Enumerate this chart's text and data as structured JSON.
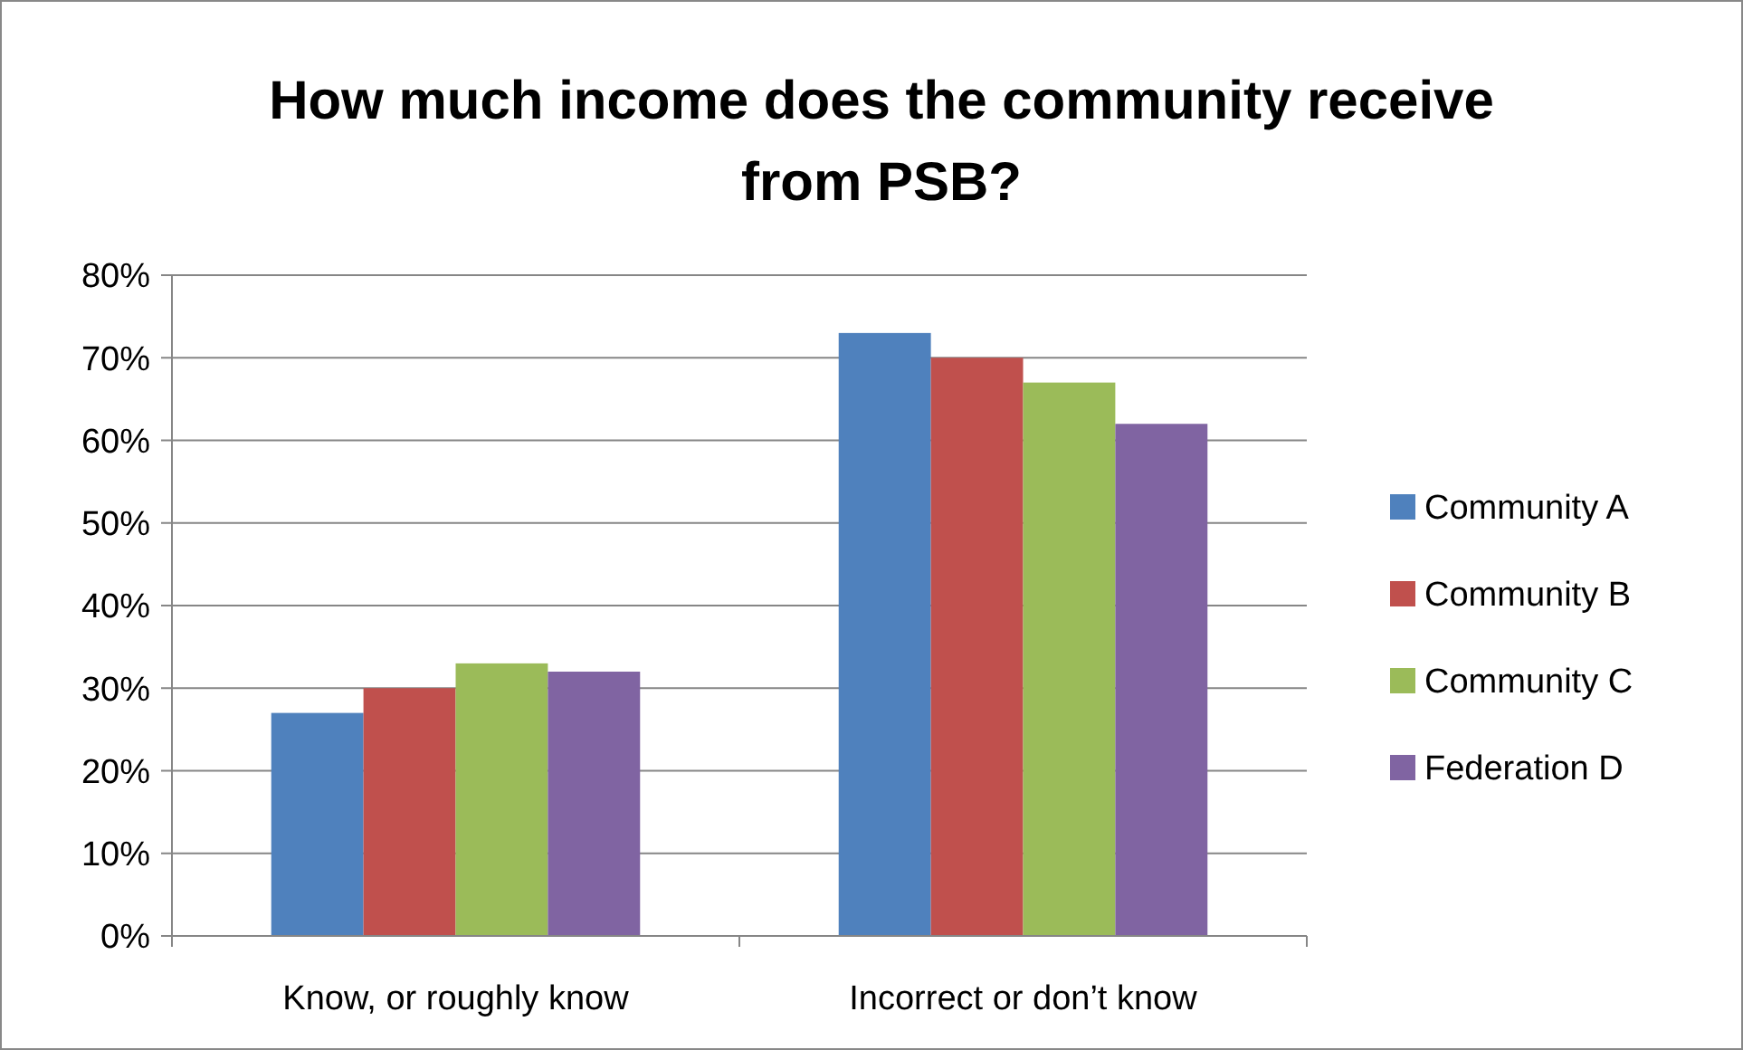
{
  "chart_data": {
    "type": "bar",
    "title": "How much income does the community receive from PSB?",
    "categories": [
      "Know, or roughly know",
      "Incorrect or don’t know"
    ],
    "series": [
      {
        "name": "Community A",
        "color": "#4f81bd",
        "values": [
          27,
          73
        ]
      },
      {
        "name": "Community B",
        "color": "#c0504d",
        "values": [
          30,
          70
        ]
      },
      {
        "name": "Community C",
        "color": "#9bbb59",
        "values": [
          33,
          67
        ]
      },
      {
        "name": "Federation D",
        "color": "#8064a2",
        "values": [
          32,
          62
        ]
      }
    ],
    "ylim": [
      0,
      80
    ],
    "yticks": [
      {
        "value": 0,
        "label": "0%"
      },
      {
        "value": 10,
        "label": "10%"
      },
      {
        "value": 20,
        "label": "20%"
      },
      {
        "value": 30,
        "label": "30%"
      },
      {
        "value": 40,
        "label": "40%"
      },
      {
        "value": 50,
        "label": "50%"
      },
      {
        "value": 60,
        "label": "60%"
      },
      {
        "value": 70,
        "label": "70%"
      },
      {
        "value": 80,
        "label": "80%"
      }
    ],
    "grid": "y",
    "legend": "right"
  }
}
